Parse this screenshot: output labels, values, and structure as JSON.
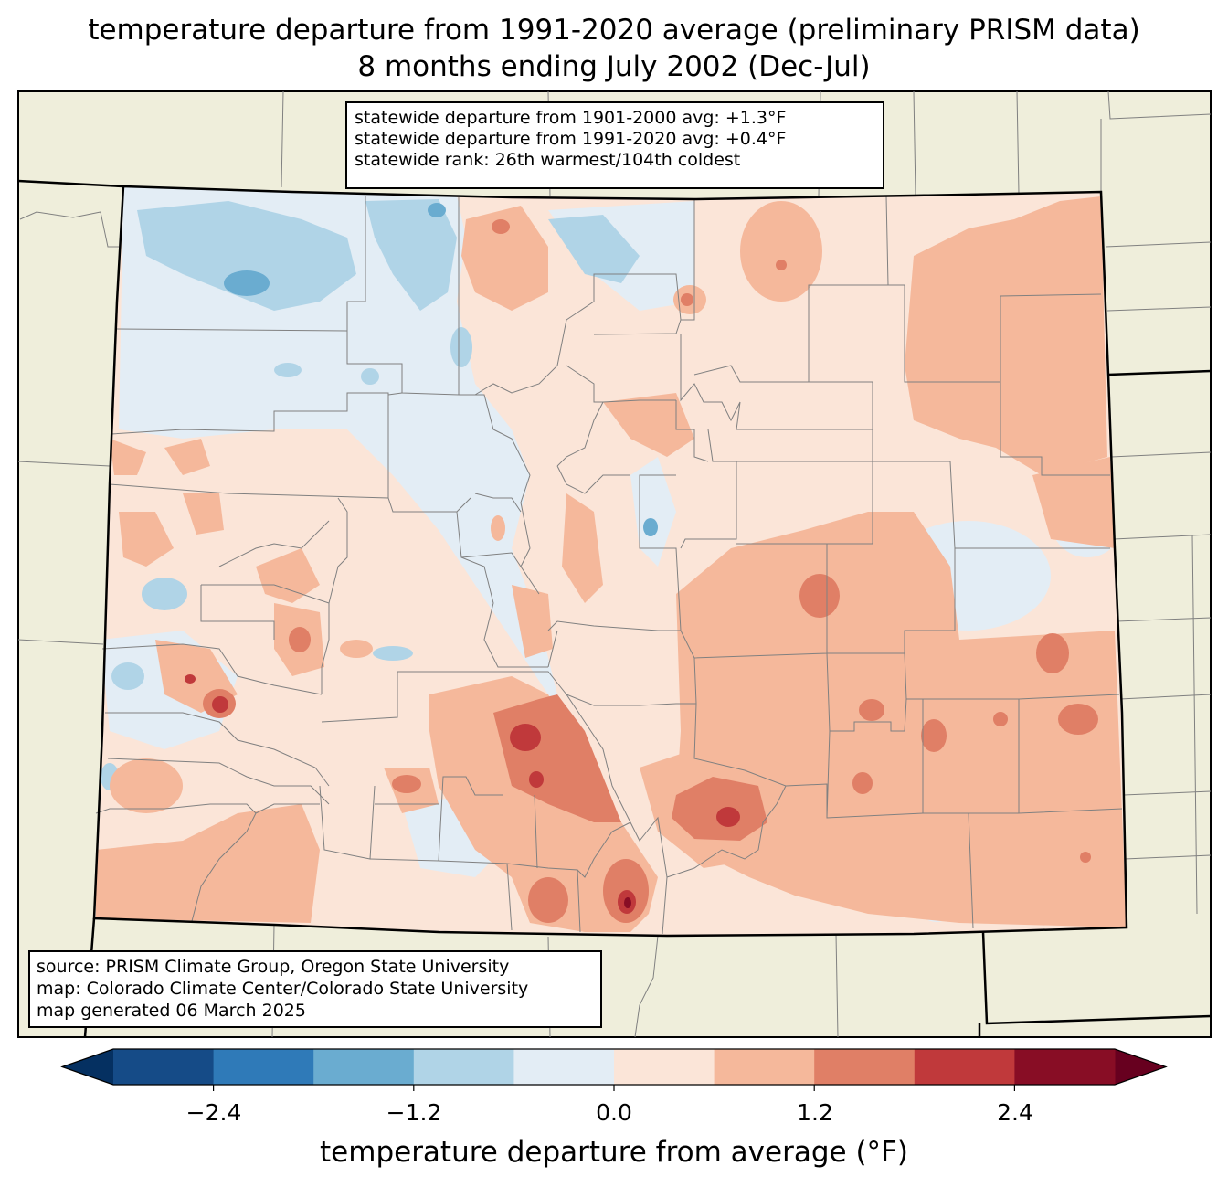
{
  "title": {
    "line1": "temperature departure from 1991-2020 average (preliminary PRISM data)",
    "line2": "8 months ending July 2002 (Dec-Jul)"
  },
  "stats": {
    "line1": "statewide departure from 1901-2000 avg: +1.3°F",
    "line2": "statewide departure from 1991-2020 avg: +0.4°F",
    "line3": "statewide rank: 26th warmest/104th coldest"
  },
  "source": {
    "line1": "source: PRISM Climate Group, Oregon State University",
    "line2": "map: Colorado Climate Center/Colorado State University",
    "line3": "map generated 06 March 2025"
  },
  "colorbar": {
    "label": "temperature departure from average (°F)",
    "ticks": [
      "−2.4",
      "−1.2",
      "0.0",
      "1.2",
      "2.4"
    ],
    "bins": [
      {
        "from": -3.6,
        "to": -3.0,
        "color": "#053061"
      },
      {
        "from": -3.0,
        "to": -2.4,
        "color": "#154b87"
      },
      {
        "from": -2.4,
        "to": -1.8,
        "color": "#2f7ab8"
      },
      {
        "from": -1.8,
        "to": -1.2,
        "color": "#6aacd0"
      },
      {
        "from": -1.2,
        "to": -0.6,
        "color": "#b0d4e7"
      },
      {
        "from": -0.6,
        "to": 0.0,
        "color": "#e3edf5"
      },
      {
        "from": 0.0,
        "to": 0.6,
        "color": "#fbe5d8"
      },
      {
        "from": 0.6,
        "to": 1.2,
        "color": "#f5b89b"
      },
      {
        "from": 1.2,
        "to": 1.8,
        "color": "#e07f66"
      },
      {
        "from": 1.8,
        "to": 2.4,
        "color": "#c0393b"
      },
      {
        "from": 2.4,
        "to": 3.0,
        "color": "#880d25"
      },
      {
        "from": 3.0,
        "to": 3.6,
        "color": "#67001f"
      }
    ]
  },
  "colors": {
    "land_outside": "#efeedb",
    "state_border": "#000000",
    "county_lines": "#808080"
  }
}
